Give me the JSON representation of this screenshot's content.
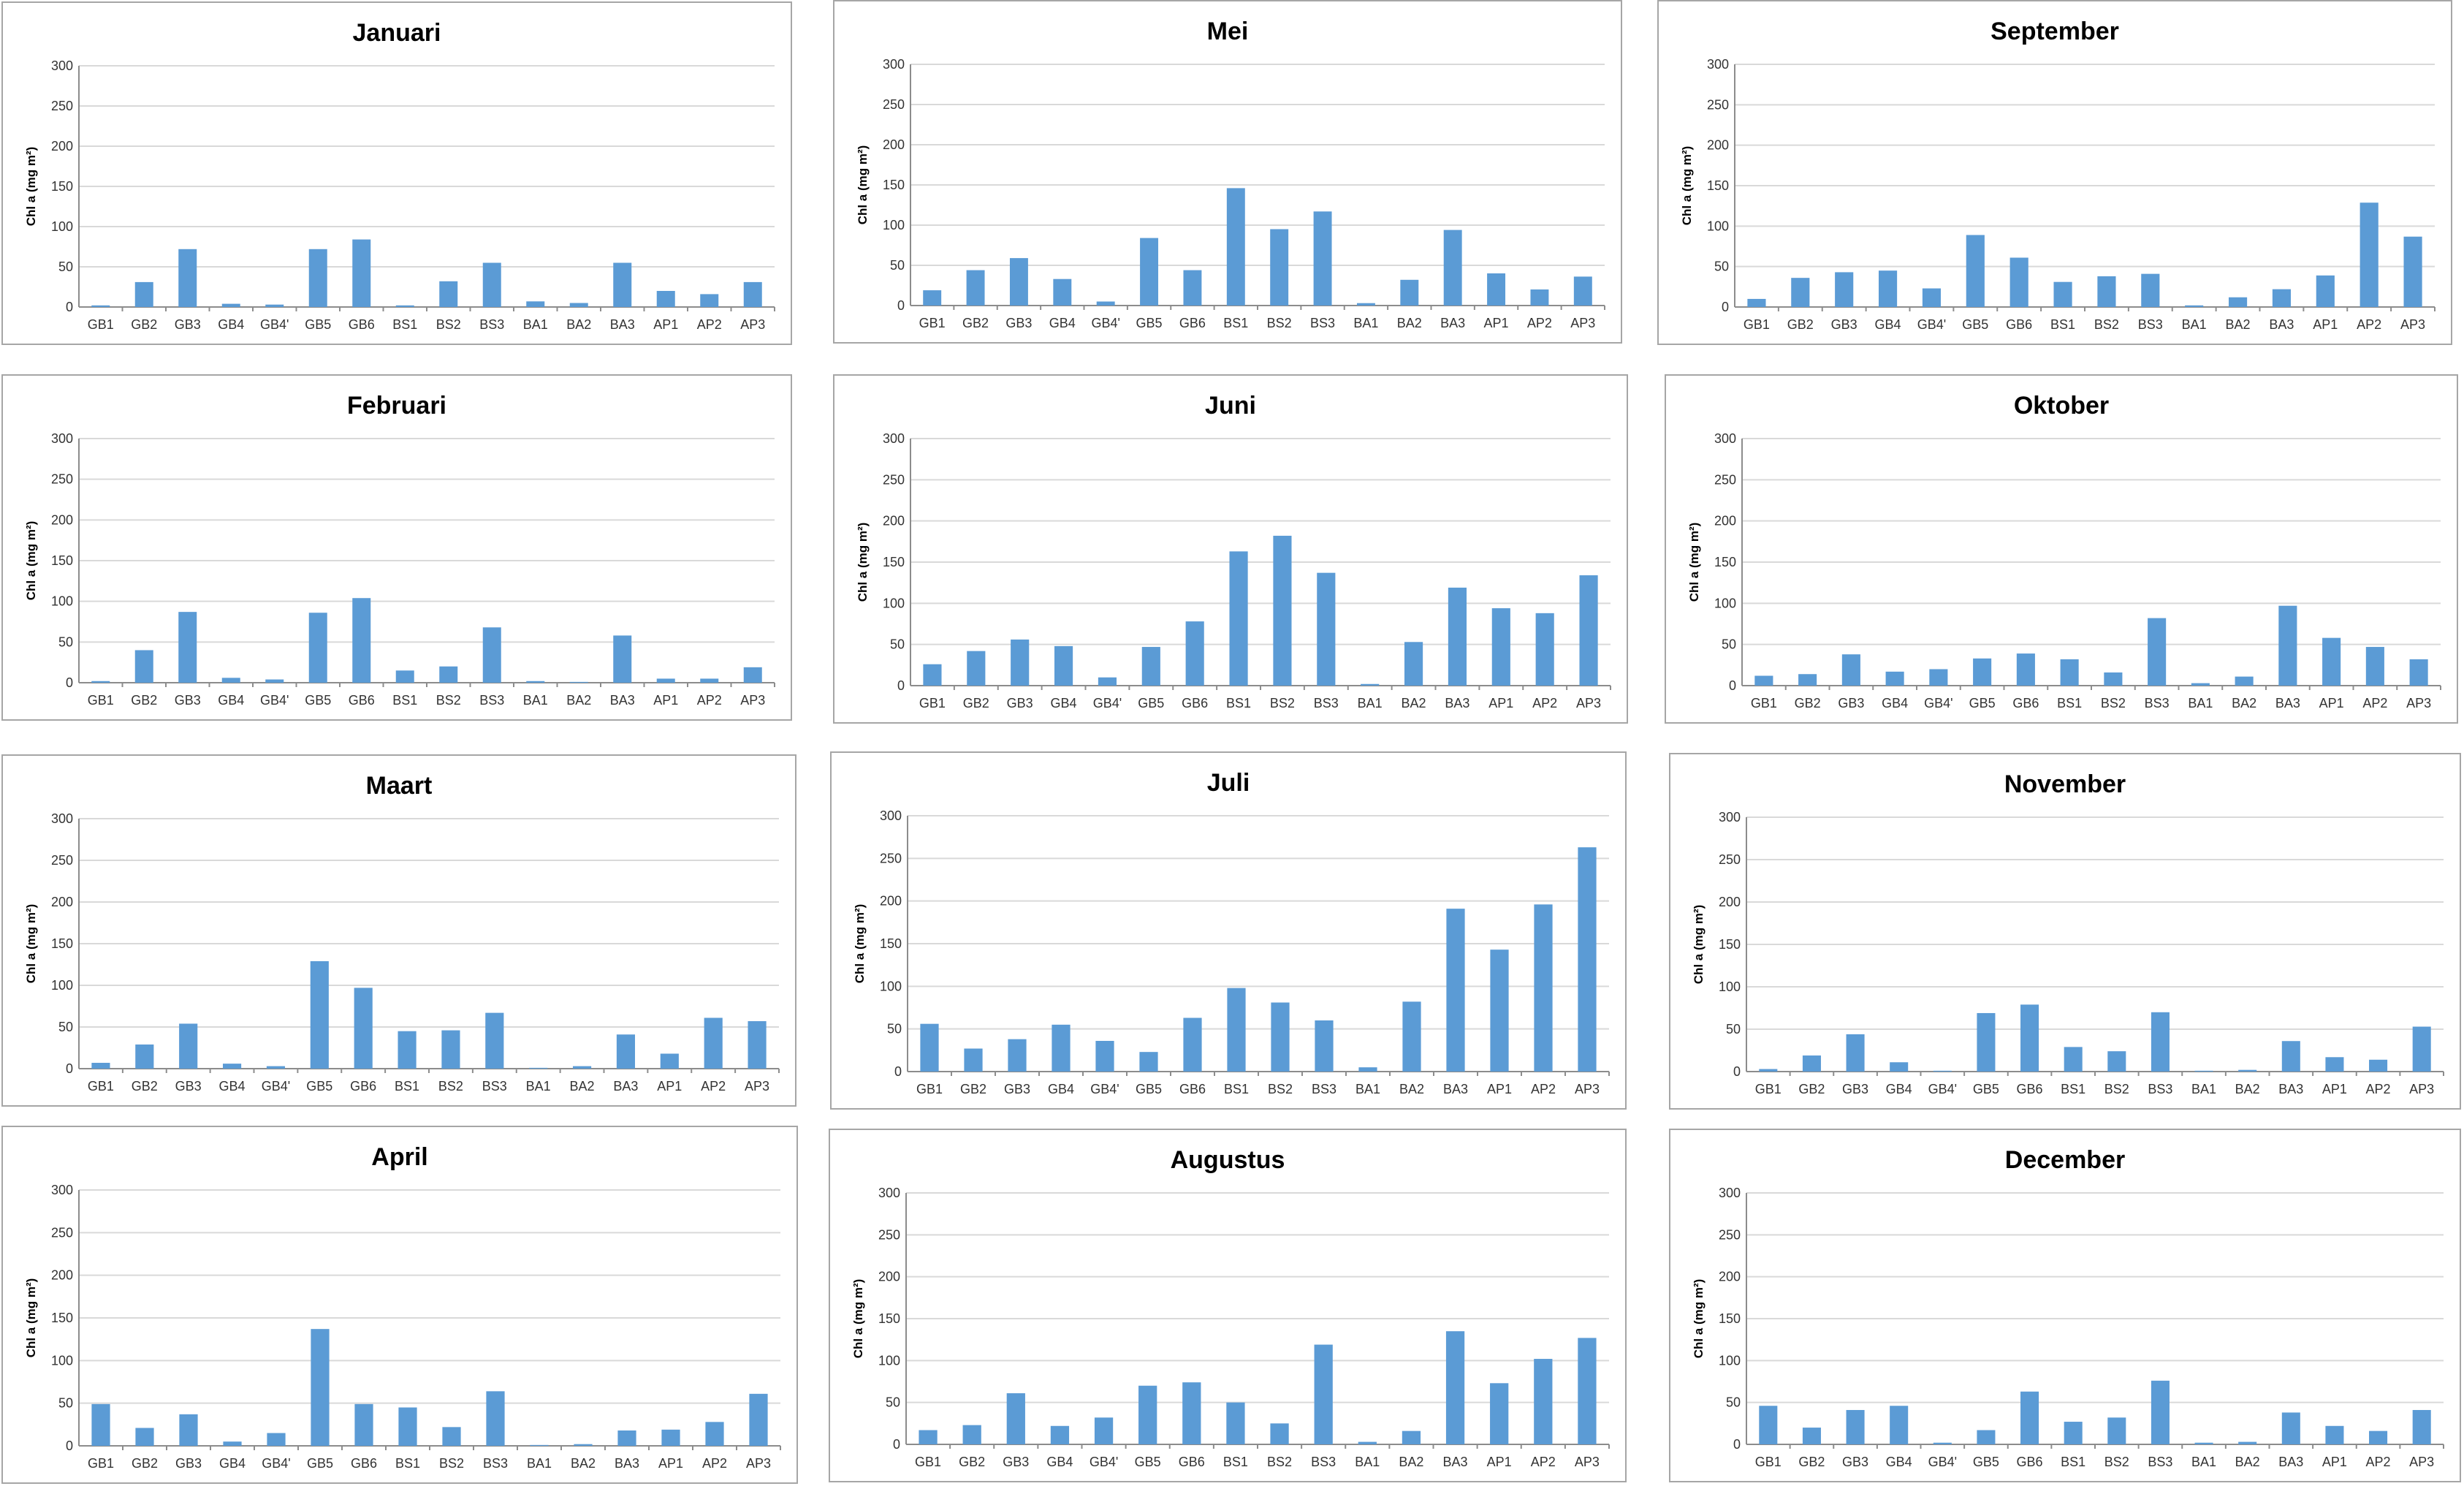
{
  "categories": [
    "GB1",
    "GB2",
    "GB3",
    "GB4",
    "GB4'",
    "GB5",
    "GB6",
    "BS1",
    "BS2",
    "BS3",
    "BA1",
    "BA2",
    "BA3",
    "AP1",
    "AP2",
    "AP3"
  ],
  "bar_color": "#5b9bd5",
  "chart_data": [
    {
      "type": "bar",
      "title": "Januari",
      "ylabel": "Chl a (mg m²)",
      "yticks": [
        "0",
        "50",
        "100",
        "150",
        "200",
        "250",
        "300"
      ],
      "ylim": [
        0,
        300
      ],
      "values": [
        2,
        31,
        72,
        4,
        3,
        72,
        84,
        2,
        32,
        55,
        7,
        5,
        55,
        20,
        16,
        31
      ]
    },
    {
      "type": "bar",
      "title": "Februari",
      "ylabel": "Chl a (mg m²)",
      "yticks": [
        "0",
        "50",
        "100",
        "150",
        "200",
        "250",
        "300"
      ],
      "ylim": [
        0,
        300
      ],
      "values": [
        2,
        40,
        87,
        6,
        4,
        86,
        104,
        15,
        20,
        68,
        2,
        1,
        58,
        5,
        5,
        19
      ]
    },
    {
      "type": "bar",
      "title": "Maart",
      "ylabel": "Chl a (mg m²)",
      "yticks": [
        "0",
        "50",
        "100",
        "150",
        "200",
        "250",
        "300"
      ],
      "ylim": [
        0,
        300
      ],
      "values": [
        7,
        29,
        54,
        6,
        3,
        129,
        97,
        45,
        46,
        67,
        1,
        3,
        41,
        18,
        61,
        57
      ]
    },
    {
      "type": "bar",
      "title": "April",
      "ylabel": "Chl a (mg m²)",
      "yticks": [
        "0",
        "50",
        "100",
        "150",
        "200",
        "250",
        "300"
      ],
      "ylim": [
        0,
        300
      ],
      "values": [
        49,
        21,
        37,
        5,
        15,
        137,
        49,
        45,
        22,
        64,
        1,
        2,
        18,
        19,
        28,
        61
      ]
    },
    {
      "type": "bar",
      "title": "Mei",
      "ylabel": "Chl a (mg m²)",
      "yticks": [
        "0",
        "50",
        "100",
        "150",
        "200",
        "250",
        "300"
      ],
      "ylim": [
        0,
        300
      ],
      "values": [
        19,
        44,
        59,
        33,
        5,
        84,
        44,
        146,
        95,
        117,
        3,
        32,
        94,
        40,
        20,
        36
      ]
    },
    {
      "type": "bar",
      "title": "Juni",
      "ylabel": "Chl a (mg m²)",
      "yticks": [
        "0",
        "50",
        "100",
        "150",
        "200",
        "250",
        "300"
      ],
      "ylim": [
        0,
        300
      ],
      "values": [
        26,
        42,
        56,
        48,
        10,
        47,
        78,
        163,
        182,
        137,
        2,
        53,
        119,
        94,
        88,
        134
      ]
    },
    {
      "type": "bar",
      "title": "Juli",
      "ylabel": "Chl a (mg m²)",
      "yticks": [
        "0",
        "50",
        "100",
        "150",
        "200",
        "250",
        "300"
      ],
      "ylim": [
        0,
        300
      ],
      "values": [
        56,
        27,
        38,
        55,
        36,
        23,
        63,
        98,
        81,
        60,
        5,
        82,
        191,
        143,
        196,
        263
      ]
    },
    {
      "type": "bar",
      "title": "Augustus",
      "ylabel": "Chl a (mg m²)",
      "yticks": [
        "0",
        "50",
        "100",
        "150",
        "200",
        "250",
        "300"
      ],
      "ylim": [
        0,
        300
      ],
      "values": [
        17,
        23,
        61,
        22,
        32,
        70,
        74,
        50,
        25,
        119,
        3,
        16,
        135,
        73,
        102,
        127
      ]
    },
    {
      "type": "bar",
      "title": "September",
      "ylabel": "Chl a (mg m²)",
      "yticks": [
        "0",
        "50",
        "100",
        "150",
        "200",
        "250",
        "300"
      ],
      "ylim": [
        0,
        300
      ],
      "values": [
        10,
        36,
        43,
        45,
        23,
        89,
        61,
        31,
        38,
        41,
        2,
        12,
        22,
        39,
        129,
        87
      ]
    },
    {
      "type": "bar",
      "title": "Oktober",
      "ylabel": "Chl a (mg m²)",
      "yticks": [
        "0",
        "50",
        "100",
        "150",
        "200",
        "250",
        "300"
      ],
      "ylim": [
        0,
        300
      ],
      "values": [
        12,
        14,
        38,
        17,
        20,
        33,
        39,
        32,
        16,
        82,
        3,
        11,
        97,
        58,
        47,
        32
      ]
    },
    {
      "type": "bar",
      "title": "November",
      "ylabel": "Chl a (mg m²)",
      "yticks": [
        "0",
        "50",
        "100",
        "150",
        "200",
        "250",
        "300"
      ],
      "ylim": [
        0,
        300
      ],
      "values": [
        3,
        19,
        44,
        11,
        1,
        69,
        79,
        29,
        24,
        70,
        1,
        2,
        36,
        17,
        14,
        53
      ]
    },
    {
      "type": "bar",
      "title": "December",
      "ylabel": "Chl a (mg m²)",
      "yticks": [
        "0",
        "50",
        "100",
        "150",
        "200",
        "250",
        "300"
      ],
      "ylim": [
        0,
        300
      ],
      "values": [
        46,
        20,
        41,
        46,
        2,
        17,
        63,
        27,
        32,
        76,
        2,
        3,
        38,
        22,
        16,
        41
      ]
    }
  ]
}
